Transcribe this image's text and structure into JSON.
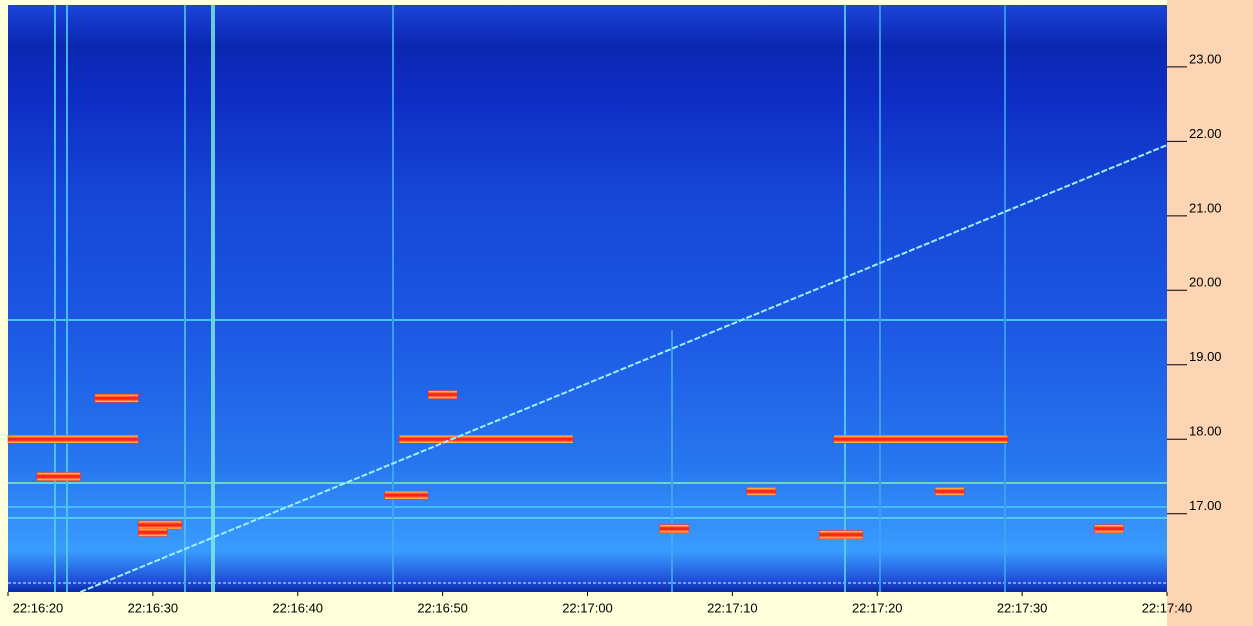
{
  "chart_data": {
    "type": "spectrogram",
    "xlim": [
      "22:16:20",
      "22:17:40"
    ],
    "xticks": [
      "22:16:20",
      "22:16:30",
      "22:16:40",
      "22:16:50",
      "22:17:00",
      "22:17:10",
      "22:17:20",
      "22:17:30",
      "22:17:40"
    ],
    "ylim": [
      15.95,
      23.83
    ],
    "yticks": [
      {
        "value": 17,
        "label": "17.00"
      },
      {
        "value": 18,
        "label": "18.00"
      },
      {
        "value": 19,
        "label": "19.00"
      },
      {
        "value": 20,
        "label": "20.00"
      },
      {
        "value": 21,
        "label": "21.00"
      },
      {
        "value": 22,
        "label": "22.00"
      },
      {
        "value": 23,
        "label": "23.00"
      }
    ],
    "tone_color": "#ff2020",
    "tones": [
      {
        "start": "22:16:20",
        "end": "22:16:29",
        "freq": 18.0
      },
      {
        "start": "22:16:47",
        "end": "22:16:59",
        "freq": 18.0
      },
      {
        "start": "22:17:17",
        "end": "22:17:29",
        "freq": 18.0
      },
      {
        "start": "22:16:26",
        "end": "22:16:29",
        "freq": 18.55
      },
      {
        "start": "22:16:49",
        "end": "22:16:51",
        "freq": 18.6
      },
      {
        "start": "22:16:29",
        "end": "22:16:32",
        "freq": 16.85
      },
      {
        "start": "22:16:29",
        "end": "22:16:31",
        "freq": 16.75
      },
      {
        "start": "22:16:46",
        "end": "22:16:49",
        "freq": 17.25
      },
      {
        "start": "22:17:05",
        "end": "22:17:07",
        "freq": 16.8
      },
      {
        "start": "22:17:11",
        "end": "22:17:13",
        "freq": 17.3
      },
      {
        "start": "22:17:16",
        "end": "22:17:19",
        "freq": 16.72
      },
      {
        "start": "22:17:24",
        "end": "22:17:26",
        "freq": 17.3
      },
      {
        "start": "22:17:35",
        "end": "22:17:37",
        "freq": 16.8
      },
      {
        "start": "22:16:22",
        "end": "22:16:25",
        "freq": 17.5
      }
    ],
    "sweep_color": "#9ef0ff",
    "sweep": {
      "x": [
        "22:16:25",
        "22:17:40"
      ],
      "y": [
        15.95,
        21.95
      ]
    }
  }
}
